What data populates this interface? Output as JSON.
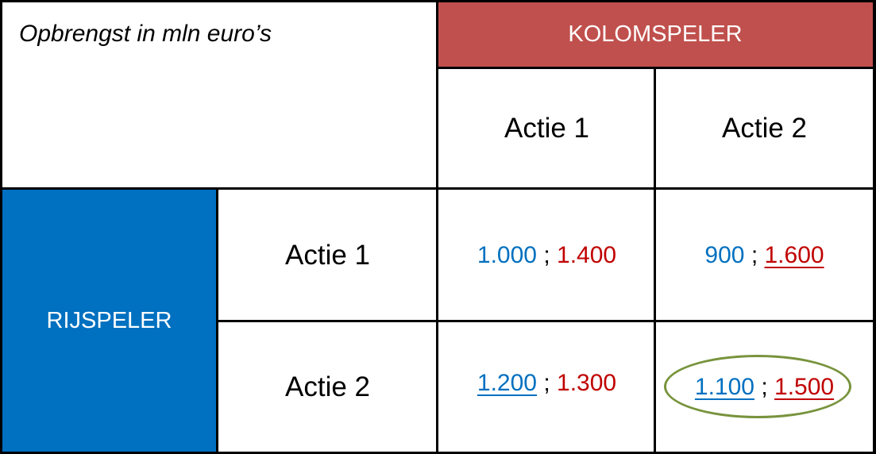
{
  "title": "Opbrengst in mln euro’s",
  "column_player": "KOLOMSPELER",
  "row_player": "RIJSPELER",
  "column_actions": [
    "Actie 1",
    "Actie 2"
  ],
  "row_actions": [
    "Actie 1",
    "Actie 2"
  ],
  "separator": ";",
  "payoffs": [
    [
      {
        "row_value": "1.000",
        "col_value": "1.400",
        "row_underlined": false,
        "col_underlined": false
      },
      {
        "row_value": "900",
        "col_value": "1.600",
        "row_underlined": false,
        "col_underlined": true
      }
    ],
    [
      {
        "row_value": "1.200",
        "col_value": "1.300",
        "row_underlined": true,
        "col_underlined": false
      },
      {
        "row_value": "1.100",
        "col_value": "1.500",
        "row_underlined": true,
        "col_underlined": true
      }
    ]
  ],
  "colors": {
    "column_header_bg": "#c0504d",
    "row_header_bg": "#0070c0",
    "row_value_color": "#0070c0",
    "col_value_color": "#c00000",
    "equilibrium_ellipse": "#77933c"
  },
  "highlighted_cell": "Actie 2 / Actie 2"
}
